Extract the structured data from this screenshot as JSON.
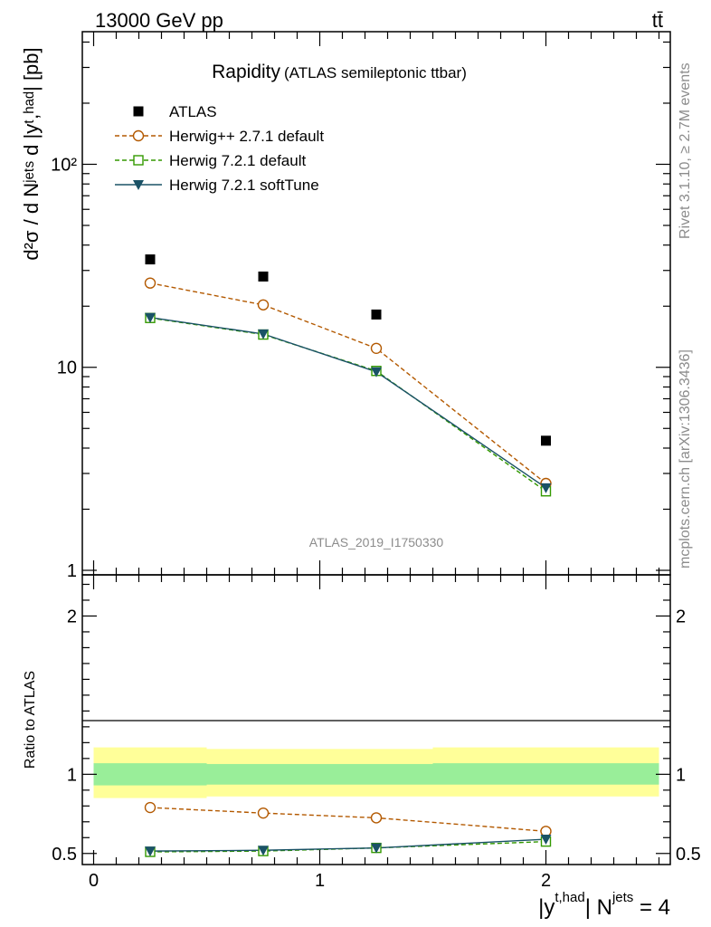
{
  "header": {
    "left": "13000 GeV pp",
    "right": "tt̄"
  },
  "side_labels": {
    "rivet": "Rivet 3.1.10, ≥ 2.7M events",
    "mcplots": "mcplots.cern.ch [arXiv:1306.3436]"
  },
  "chart_data": [
    {
      "type": "scatter",
      "title": "Rapidity",
      "subtitle": "(ATLAS semileptonic ttbar)",
      "watermark": "ATLAS_2019_I1750330",
      "ylabel": "d²σ / d Nʲᵉᵗˢ d |yᵗ,ʰᵃᵈ| [pb]",
      "yscale": "log",
      "ylim": [
        0.95,
        450
      ],
      "xlim": [
        -0.05,
        2.55
      ],
      "y_tick_labels": [
        "1",
        "10",
        "10²"
      ],
      "x": [
        0.25,
        0.75,
        1.25,
        2.0
      ],
      "series": [
        {
          "name": "ATLAS",
          "marker": "filled-square",
          "line": "none",
          "color": "#000000",
          "values": [
            34,
            28,
            18.2,
            4.35
          ]
        },
        {
          "name": "Herwig++ 2.7.1 default",
          "marker": "open-circle",
          "line": "dashed",
          "color": "#b35900",
          "values": [
            26,
            20.3,
            12.4,
            2.68
          ]
        },
        {
          "name": "Herwig 7.2.1 default",
          "marker": "open-square",
          "line": "dashed",
          "color": "#339900",
          "values": [
            17.5,
            14.5,
            9.6,
            2.45
          ]
        },
        {
          "name": "Herwig 7.2.1 softTune",
          "marker": "filled-triangle-down",
          "line": "solid",
          "color": "#1a5266",
          "values": [
            17.6,
            14.6,
            9.5,
            2.55
          ]
        }
      ],
      "legend_position": "top-left"
    },
    {
      "type": "line",
      "ylabel": "Ratio to ATLAS",
      "xlabel_parts": {
        "main": "|y",
        "sup": "t,had",
        "mid": "| N",
        "sup2": "jets",
        "end": " = 4"
      },
      "xlim": [
        -0.05,
        2.55
      ],
      "ylim": [
        0.43,
        2.26
      ],
      "x_tick_labels": [
        "0",
        "1",
        "2"
      ],
      "y_tick_labels": [
        "0.5",
        "1",
        "2"
      ],
      "bands": [
        {
          "name": "total uncertainty",
          "color": "#ffff99",
          "bins": [
            [
              0,
              0.5,
              0.85,
              1.17
            ],
            [
              0.5,
              1.5,
              0.86,
              1.16
            ],
            [
              1.5,
              2.5,
              0.86,
              1.17
            ]
          ]
        },
        {
          "name": "statistical uncertainty",
          "color": "#99ee99",
          "bins": [
            [
              0,
              0.5,
              0.93,
              1.07
            ],
            [
              0.5,
              1.5,
              0.935,
              1.065
            ],
            [
              1.5,
              2.5,
              0.935,
              1.07
            ]
          ]
        }
      ],
      "x": [
        0.25,
        0.75,
        1.25,
        2.0
      ],
      "series": [
        {
          "name": "Herwig++ 2.7.1 default",
          "marker": "open-circle",
          "line": "dashed",
          "color": "#b35900",
          "values": [
            0.79,
            0.755,
            0.725,
            0.64
          ]
        },
        {
          "name": "Herwig 7.2.1 default",
          "marker": "open-square",
          "line": "dashed",
          "color": "#339900",
          "values": [
            0.51,
            0.515,
            0.535,
            0.575
          ]
        },
        {
          "name": "Herwig 7.2.1 softTune",
          "marker": "filled-triangle-down",
          "line": "solid",
          "color": "#1a5266",
          "values": [
            0.515,
            0.52,
            0.535,
            0.59
          ]
        }
      ]
    }
  ]
}
